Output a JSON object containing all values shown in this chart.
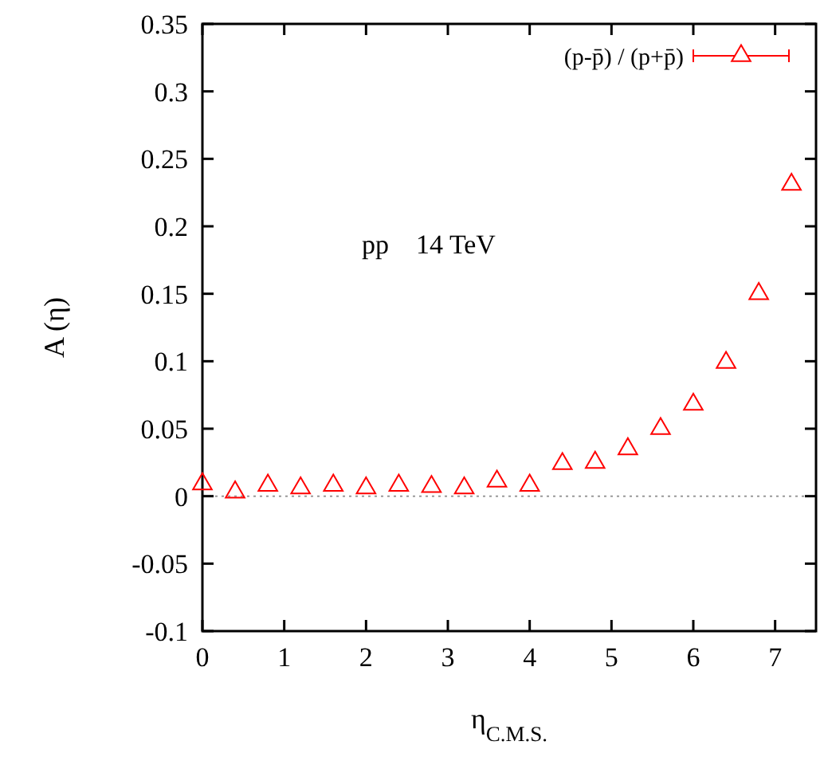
{
  "chart_data": {
    "type": "scatter",
    "xlabel": "η$_{C.M.S.}$",
    "ylabel": "A (η)",
    "x": [
      0,
      0.4,
      0.8,
      1.2,
      1.6,
      2.0,
      2.4,
      2.8,
      3.2,
      3.6,
      4.0,
      4.4,
      4.8,
      5.2,
      5.6,
      6.0,
      6.4,
      6.8,
      7.2
    ],
    "series": [
      {
        "name": "(p-p̄) / (p+p̄)",
        "color": "#ff0000",
        "values": [
          0.009,
          0.003,
          0.008,
          0.006,
          0.008,
          0.006,
          0.008,
          0.007,
          0.006,
          0.011,
          0.008,
          0.024,
          0.025,
          0.035,
          0.05,
          0.068,
          0.099,
          0.15,
          0.231
        ]
      }
    ],
    "xlim": [
      0,
      7.5
    ],
    "ylim": [
      -0.1,
      0.35
    ],
    "xticks": [
      0,
      1,
      2,
      3,
      4,
      5,
      6,
      7
    ],
    "yticks": [
      -0.1,
      -0.05,
      0,
      0.05,
      0.1,
      0.15,
      0.2,
      0.25,
      0.3,
      0.35
    ],
    "ref_lines": [
      {
        "axis": "y",
        "value": 0,
        "color": "#999999",
        "line_style": "dotted"
      }
    ],
    "annotations": [
      "pp    14 TeV"
    ],
    "marker": "triangle",
    "legend": "top right",
    "grid": false
  }
}
